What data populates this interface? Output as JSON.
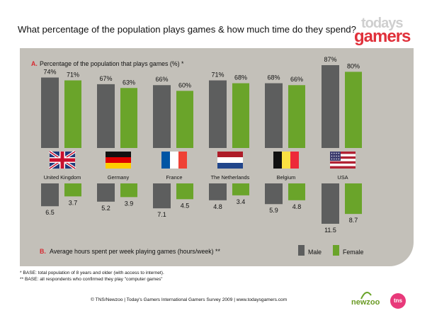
{
  "title": "What percentage of the population plays games & how much time do they spend?",
  "logo": {
    "line1": "todays",
    "line2": "gamers"
  },
  "colors": {
    "male": "#5d5e5e",
    "female": "#6aa42a",
    "accent": "#d7282f",
    "panel": "#c3c0b9"
  },
  "chart_data": [
    {
      "type": "bar",
      "section_letter": "A.",
      "title": "Percentage of the population that plays games (%) *",
      "categories": [
        "United Kingdom",
        "Germany",
        "France",
        "The Netherlands",
        "Belgium",
        "USA"
      ],
      "flags": [
        "uk-flag-icon",
        "germany-flag-icon",
        "france-flag-icon",
        "netherlands-flag-icon",
        "belgium-flag-icon",
        "usa-flag-icon"
      ],
      "series": [
        {
          "name": "Male",
          "values": [
            74,
            67,
            66,
            71,
            68,
            87
          ],
          "labels": [
            "74%",
            "67%",
            "66%",
            "71%",
            "68%",
            "87%"
          ]
        },
        {
          "name": "Female",
          "values": [
            71,
            63,
            60,
            68,
            66,
            80
          ],
          "labels": [
            "71%",
            "63%",
            "60%",
            "68%",
            "66%",
            "80%"
          ]
        }
      ]
    },
    {
      "type": "bar",
      "section_letter": "B.",
      "title": "Average hours spent per week playing games (hours/week) **",
      "categories": [
        "United Kingdom",
        "Germany",
        "France",
        "The Netherlands",
        "Belgium",
        "USA"
      ],
      "series": [
        {
          "name": "Male",
          "values": [
            6.5,
            5.2,
            7.1,
            4.8,
            5.9,
            11.5
          ],
          "labels": [
            "6.5",
            "5.2",
            "7.1",
            "4.8",
            "5.9",
            "11.5"
          ]
        },
        {
          "name": "Female",
          "values": [
            3.7,
            3.9,
            4.5,
            3.4,
            4.8,
            8.7
          ],
          "labels": [
            "3.7",
            "3.9",
            "4.5",
            "3.4",
            "4.8",
            "8.7"
          ]
        }
      ]
    }
  ],
  "legend": {
    "male": "Male",
    "female": "Female"
  },
  "notes": {
    "line1": "* BASE: total population of 8 years and older (with access to internet).",
    "line2": "** BASE: all respondents who confirmed they play \"computer games\""
  },
  "footer": "© TNS/Newzoo | Today's Gamers International Gamers Survey 2009 | www.todaysgamers.com",
  "brands": {
    "newzoo": "newzoo",
    "tns": "tns"
  }
}
